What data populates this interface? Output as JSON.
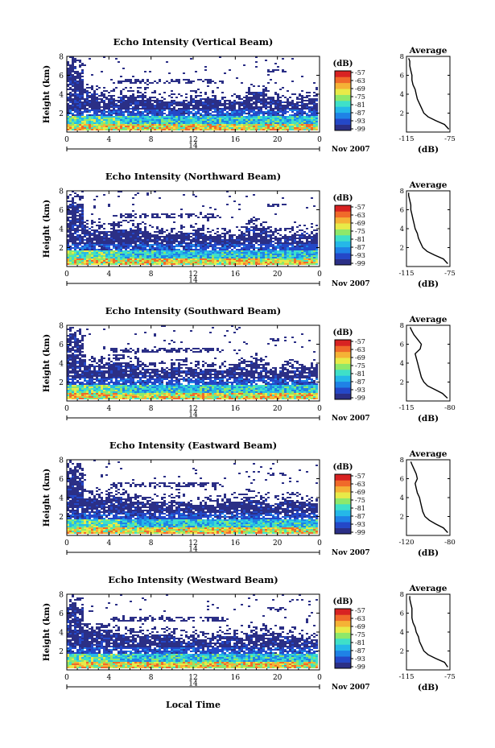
{
  "figure": {
    "xlabel": "Local Time",
    "date_label": "14",
    "month_label": "Nov 2007",
    "colorbar_unit": "(dB)",
    "average_title": "Average",
    "average_xlabel": "(dB)"
  },
  "colorbar": {
    "ticks": [
      "-57",
      "-63",
      "-69",
      "-75",
      "-81",
      "-87",
      "-93",
      "-99"
    ],
    "colors": [
      "#2b2f86",
      "#2448c8",
      "#1f82e6",
      "#25b8e8",
      "#3fe0c8",
      "#8ee86a",
      "#e8ea48",
      "#f5b236",
      "#f06a2a",
      "#d82222"
    ]
  },
  "chart_data": [
    {
      "type": "heatmap",
      "title": "Echo Intensity (Vertical Beam)",
      "ylabel": "Height (km)",
      "x_ticks": [
        "0",
        "4",
        "8",
        "12",
        "16",
        "20",
        "0"
      ],
      "y_ticks": [
        "2",
        "4",
        "6",
        "8"
      ],
      "xlim": [
        0,
        24
      ],
      "ylim": [
        0,
        8
      ],
      "colorbar_range_db": [
        -99,
        -57
      ],
      "average_profile": {
        "title": "Average",
        "xlabel": "(dB)",
        "x_ticks": [
          "-115",
          "-75"
        ],
        "y_ticks": [
          "2",
          "4",
          "6",
          "8"
        ],
        "xlim": [
          -115,
          -75
        ],
        "ylim": [
          0,
          8
        ],
        "db": [
          -76,
          -80,
          -88,
          -95,
          -99,
          -101,
          -103,
          -105,
          -106,
          -107,
          -109,
          -110,
          -110,
          -111,
          -112,
          -112,
          -113
        ],
        "height_km": [
          0.3,
          0.8,
          1.2,
          1.6,
          2.0,
          2.5,
          3.0,
          3.5,
          4.0,
          4.5,
          5.0,
          5.5,
          6.0,
          6.5,
          7.0,
          7.5,
          7.8
        ]
      }
    },
    {
      "type": "heatmap",
      "title": "Echo Intensity (Northward Beam)",
      "ylabel": "Height (km)",
      "x_ticks": [
        "0",
        "4",
        "8",
        "12",
        "16",
        "20",
        "0"
      ],
      "y_ticks": [
        "2",
        "4",
        "6",
        "8"
      ],
      "xlim": [
        0,
        24
      ],
      "ylim": [
        0,
        8
      ],
      "colorbar_range_db": [
        -99,
        -57
      ],
      "average_profile": {
        "title": "Average",
        "xlabel": "(dB)",
        "x_ticks": [
          "-115",
          "-75"
        ],
        "y_ticks": [
          "2",
          "4",
          "6",
          "8"
        ],
        "xlim": [
          -115,
          -75
        ],
        "ylim": [
          0,
          8
        ],
        "db": [
          -77,
          -81,
          -89,
          -96,
          -100,
          -102,
          -104,
          -105,
          -107,
          -108,
          -109,
          -110,
          -111,
          -111,
          -112,
          -113,
          -113
        ],
        "height_km": [
          0.3,
          0.8,
          1.2,
          1.6,
          2.0,
          2.5,
          3.0,
          3.5,
          4.0,
          4.5,
          5.0,
          5.5,
          6.0,
          6.5,
          7.0,
          7.5,
          7.8
        ]
      }
    },
    {
      "type": "heatmap",
      "title": "Echo Intensity (Southward Beam)",
      "ylabel": "Height (km)",
      "x_ticks": [
        "0",
        "4",
        "8",
        "12",
        "16",
        "20",
        "0"
      ],
      "y_ticks": [
        "2",
        "4",
        "6",
        "8"
      ],
      "xlim": [
        0,
        24
      ],
      "ylim": [
        0,
        8
      ],
      "colorbar_range_db": [
        -99,
        -57
      ],
      "average_profile": {
        "title": "Average",
        "xlabel": "(dB)",
        "x_ticks": [
          "-115",
          "-80"
        ],
        "y_ticks": [
          "2",
          "4",
          "6",
          "8"
        ],
        "xlim": [
          -115,
          -80
        ],
        "ylim": [
          0,
          8
        ],
        "db": [
          -82,
          -86,
          -92,
          -98,
          -101,
          -103,
          -104,
          -105,
          -106,
          -107,
          -108,
          -104,
          -103,
          -106,
          -109,
          -111,
          -112
        ],
        "height_km": [
          0.3,
          0.8,
          1.2,
          1.6,
          2.0,
          2.5,
          3.0,
          3.5,
          4.0,
          4.5,
          5.0,
          5.5,
          6.0,
          6.5,
          7.0,
          7.5,
          7.8
        ]
      }
    },
    {
      "type": "heatmap",
      "title": "Echo Intensity (Eastward Beam)",
      "ylabel": "Height (km)",
      "x_ticks": [
        "0",
        "4",
        "8",
        "12",
        "16",
        "20",
        "0"
      ],
      "y_ticks": [
        "2",
        "4",
        "6",
        "8"
      ],
      "xlim": [
        0,
        24
      ],
      "ylim": [
        0,
        8
      ],
      "colorbar_range_db": [
        -99,
        -57
      ],
      "average_profile": {
        "title": "Average",
        "xlabel": "(dB)",
        "x_ticks": [
          "-120",
          "-80"
        ],
        "y_ticks": [
          "2",
          "4",
          "6",
          "8"
        ],
        "xlim": [
          -120,
          -80
        ],
        "ylim": [
          0,
          8
        ],
        "db": [
          -82,
          -86,
          -93,
          -99,
          -103,
          -105,
          -106,
          -107,
          -108,
          -110,
          -111,
          -112,
          -110,
          -111,
          -113,
          -115,
          -116
        ],
        "height_km": [
          0.3,
          0.8,
          1.2,
          1.6,
          2.0,
          2.5,
          3.0,
          3.5,
          4.0,
          4.5,
          5.0,
          5.5,
          6.0,
          6.5,
          7.0,
          7.5,
          7.8
        ]
      }
    },
    {
      "type": "heatmap",
      "title": "Echo Intensity (Westward Beam)",
      "ylabel": "Height (km)",
      "x_ticks": [
        "0",
        "4",
        "8",
        "12",
        "16",
        "20",
        "0"
      ],
      "y_ticks": [
        "2",
        "4",
        "6",
        "8"
      ],
      "xlim": [
        0,
        24
      ],
      "ylim": [
        0,
        8
      ],
      "colorbar_range_db": [
        -99,
        -57
      ],
      "average_profile": {
        "title": "Average",
        "xlabel": "(dB)",
        "x_ticks": [
          "-115",
          "-75"
        ],
        "y_ticks": [
          "2",
          "4",
          "6",
          "8"
        ],
        "xlim": [
          -115,
          -75
        ],
        "ylim": [
          0,
          8
        ],
        "db": [
          -77,
          -80,
          -88,
          -95,
          -99,
          -101,
          -103,
          -104,
          -106,
          -107,
          -109,
          -110,
          -110,
          -110,
          -111,
          -112,
          -112
        ],
        "height_km": [
          0.3,
          0.8,
          1.2,
          1.6,
          2.0,
          2.5,
          3.0,
          3.5,
          4.0,
          4.5,
          5.0,
          5.5,
          6.0,
          6.5,
          7.0,
          7.5,
          7.8
        ]
      }
    }
  ]
}
